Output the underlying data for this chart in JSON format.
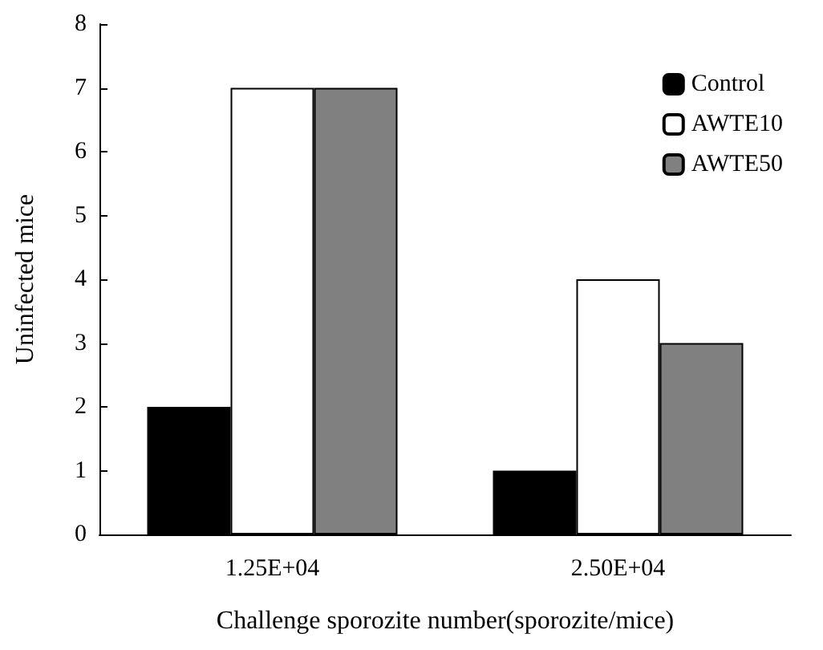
{
  "chart_data": {
    "type": "bar",
    "xlabel": "Challenge sporozite number(sporozite/mice)",
    "ylabel": "Uninfected mice",
    "categories": [
      "1.25E+04",
      "2.50E+04"
    ],
    "series": [
      {
        "name": "Control",
        "color": "#000000",
        "values": [
          2,
          1
        ]
      },
      {
        "name": "AWTE10",
        "color": "#ffffff",
        "values": [
          7,
          4
        ]
      },
      {
        "name": "AWTE50",
        "color": "#808080",
        "values": [
          7,
          3
        ]
      }
    ],
    "ylim": [
      0,
      8
    ],
    "yticks": [
      0,
      1,
      2,
      3,
      4,
      5,
      6,
      7,
      8
    ],
    "grid": false,
    "legend": "top right"
  }
}
